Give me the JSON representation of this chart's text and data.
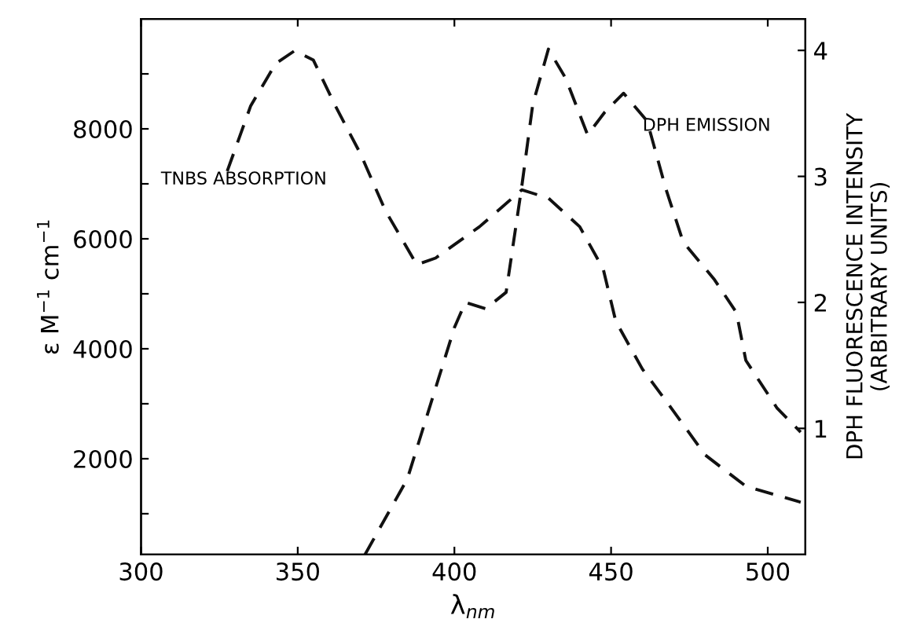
{
  "chart_data": {
    "type": "line",
    "xlabel": "λ$_{nm}$",
    "ylabel": "ε M$^{−1}$ cm$^{−1}$",
    "y2label": "DPH FLUORESCENCE INTENSITY\n(ARBITRARY UNITS)",
    "xlim": [
      300,
      512
    ],
    "xticks": [
      300,
      350,
      400,
      450,
      500
    ],
    "ylim": [
      260,
      10000
    ],
    "yticks": [
      {
        "value": 1000,
        "label": null
      },
      2000,
      {
        "value": 3000,
        "label": null
      },
      4000,
      {
        "value": 5000,
        "label": null
      },
      6000,
      {
        "value": 7000,
        "label": null
      },
      8000,
      {
        "value": 9000,
        "label": null
      }
    ],
    "y2lim": [
      0,
      4.25
    ],
    "y2ticks": [
      1,
      2,
      3,
      4
    ],
    "line_style": "dashed",
    "marker": "none",
    "grid": false,
    "series": [
      {
        "color": "#111111",
        "x": [
          327.5,
          335,
          343,
          349,
          355,
          362,
          370,
          378,
          388,
          394,
          408,
          421.5,
          430,
          440,
          447.5,
          451.5,
          460,
          470,
          480,
          493,
          510.5
        ],
        "values": [
          7230,
          8420,
          9190,
          9420,
          9250,
          8420,
          7550,
          6510,
          5530,
          5650,
          6220,
          6890,
          6740,
          6220,
          5450,
          4500,
          3630,
          2860,
          2070,
          1500,
          1210
        ]
      },
      {
        "color": "#111111",
        "axis": "y2",
        "x": [
          371.5,
          385,
          395,
          400,
          403.5,
          410,
          416.5,
          421.5,
          425,
          430,
          435.5,
          442.5,
          448,
          454,
          461.5,
          467.5,
          473,
          483,
          490,
          493,
          503,
          510.5
        ],
        "values": [
          0,
          0.6,
          1.4,
          1.8,
          2.0,
          1.95,
          2.08,
          2.92,
          3.57,
          4.01,
          3.78,
          3.33,
          3.51,
          3.66,
          3.44,
          2.9,
          2.48,
          2.18,
          1.92,
          1.54,
          1.16,
          0.97
        ]
      }
    ],
    "annotations": [
      "TNBS ABSORPTION",
      "DPH EMISSION"
    ]
  }
}
